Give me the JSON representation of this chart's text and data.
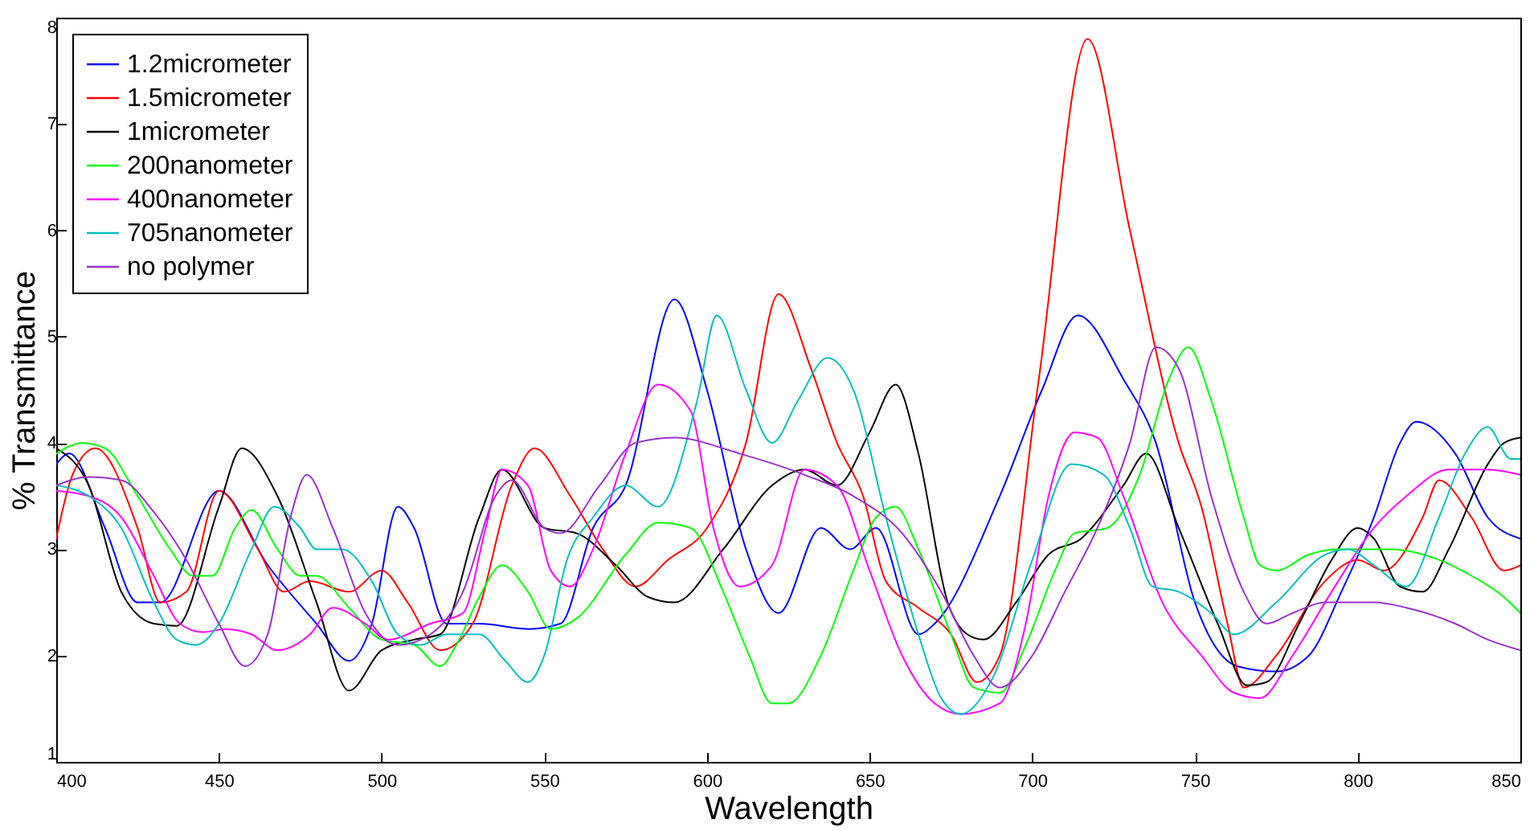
{
  "chart_data": {
    "type": "line",
    "xlabel": "Wavelength",
    "ylabel": "% Transmittance",
    "xlim": [
      400,
      850
    ],
    "ylim": [
      1,
      8
    ],
    "xticks": [
      400,
      450,
      500,
      550,
      600,
      650,
      700,
      750,
      800,
      850
    ],
    "yticks": [
      1,
      2,
      3,
      4,
      5,
      6,
      7,
      8
    ],
    "grid": false,
    "legend": "top left",
    "marker": "none",
    "line_style": "solid",
    "series": [
      {
        "name": "1.2micrometer",
        "color": "#0000ff",
        "x": [
          400,
          404,
          415,
          425,
          432,
          450,
          465,
          480,
          490,
          497,
          505,
          510,
          520,
          530,
          545,
          555,
          565,
          575,
          590,
          600,
          612,
          622,
          635,
          644,
          652,
          665,
          670,
          690,
          703,
          714,
          728,
          738,
          750,
          763,
          775,
          785,
          795,
          805,
          813,
          818,
          830,
          840,
          850
        ],
        "values": [
          3.8,
          3.9,
          3.2,
          2.5,
          2.5,
          3.55,
          2.85,
          2.3,
          1.95,
          2.3,
          3.4,
          3.2,
          2.3,
          2.3,
          2.25,
          2.3,
          3.2,
          3.6,
          5.35,
          4.5,
          3.0,
          2.4,
          3.2,
          3.0,
          3.2,
          2.2,
          2.3,
          3.5,
          4.5,
          5.2,
          4.6,
          4.0,
          2.5,
          1.9,
          1.85,
          2.0,
          2.6,
          3.3,
          4.0,
          4.2,
          3.9,
          3.3,
          3.1
        ]
      },
      {
        "name": "1.5micrometer",
        "color": "#ff0000",
        "x": [
          400,
          405,
          412,
          425,
          432,
          440,
          450,
          462,
          470,
          478,
          490,
          500,
          508,
          518,
          528,
          540,
          547,
          558,
          568,
          578,
          588,
          600,
          612,
          622,
          632,
          640,
          648,
          655,
          665,
          675,
          683,
          690,
          702,
          717,
          730,
          745,
          752,
          760,
          765,
          775,
          790,
          800,
          808,
          820,
          825,
          835,
          845,
          850
        ],
        "values": [
          3.1,
          3.7,
          3.95,
          3.2,
          2.5,
          2.6,
          3.55,
          3.0,
          2.6,
          2.7,
          2.6,
          2.8,
          2.5,
          2.05,
          2.3,
          3.6,
          3.95,
          3.5,
          3.0,
          2.65,
          2.9,
          3.2,
          4.0,
          5.4,
          4.7,
          4.0,
          3.5,
          2.7,
          2.45,
          2.2,
          1.75,
          2.0,
          4.6,
          7.8,
          6.0,
          4.0,
          3.4,
          2.3,
          1.7,
          2.0,
          2.7,
          2.9,
          2.8,
          3.3,
          3.65,
          3.3,
          2.8,
          2.85
        ]
      },
      {
        "name": "1micrometer",
        "color": "#000000",
        "x": [
          400,
          410,
          420,
          430,
          437,
          450,
          457,
          468,
          480,
          490,
          500,
          510,
          518,
          530,
          537,
          550,
          560,
          572,
          582,
          590,
          605,
          620,
          630,
          640,
          650,
          658,
          665,
          674,
          680,
          685,
          695,
          705,
          715,
          728,
          735,
          745,
          757,
          766,
          772,
          782,
          792,
          800,
          805,
          813,
          820,
          828,
          840,
          845,
          850
        ],
        "values": [
          3.95,
          3.6,
          2.6,
          2.3,
          2.28,
          3.4,
          3.95,
          3.5,
          2.5,
          1.67,
          2.05,
          2.15,
          2.2,
          3.3,
          3.75,
          3.2,
          3.15,
          2.85,
          2.55,
          2.5,
          3.0,
          3.6,
          3.75,
          3.6,
          4.1,
          4.55,
          3.9,
          2.5,
          2.2,
          2.15,
          2.5,
          2.95,
          3.1,
          3.6,
          3.9,
          3.2,
          2.3,
          1.72,
          1.75,
          2.3,
          2.9,
          3.2,
          3.1,
          2.65,
          2.6,
          3.0,
          3.8,
          4.0,
          4.05
        ]
      },
      {
        "name": "200nanometer",
        "color": "#00ff00",
        "x": [
          400,
          408,
          415,
          425,
          435,
          442,
          448,
          455,
          460,
          468,
          475,
          480,
          490,
          500,
          510,
          518,
          523,
          530,
          537,
          545,
          552,
          560,
          575,
          585,
          595,
          605,
          613,
          620,
          625,
          635,
          645,
          652,
          658,
          665,
          675,
          682,
          690,
          698,
          707,
          713,
          723,
          733,
          742,
          748,
          755,
          765,
          770,
          775,
          785,
          793,
          810,
          825,
          835,
          845,
          850
        ],
        "values": [
          3.9,
          4.0,
          3.95,
          3.5,
          3.0,
          2.75,
          2.75,
          3.2,
          3.37,
          3.0,
          2.75,
          2.75,
          2.45,
          2.15,
          2.1,
          1.9,
          2.1,
          2.55,
          2.85,
          2.6,
          2.25,
          2.35,
          2.95,
          3.25,
          3.2,
          2.6,
          2.0,
          1.55,
          1.55,
          2.0,
          2.8,
          3.3,
          3.4,
          3.0,
          2.2,
          1.7,
          1.65,
          2.1,
          2.8,
          3.15,
          3.2,
          3.7,
          4.6,
          4.9,
          4.4,
          3.3,
          2.85,
          2.8,
          2.95,
          3.0,
          3.0,
          2.9,
          2.75,
          2.55,
          2.4
        ]
      },
      {
        "name": "400nanometer",
        "color": "#ff00ff",
        "x": [
          400,
          410,
          420,
          430,
          438,
          445,
          452,
          460,
          468,
          478,
          485,
          495,
          502,
          515,
          525,
          532,
          537,
          545,
          552,
          558,
          565,
          575,
          585,
          595,
          602,
          610,
          620,
          630,
          640,
          650,
          660,
          670,
          678,
          690,
          698,
          705,
          713,
          720,
          728,
          740,
          752,
          762,
          770,
          780,
          792,
          805,
          815,
          828,
          840,
          850
        ],
        "values": [
          3.55,
          3.5,
          3.3,
          2.75,
          2.3,
          2.22,
          2.25,
          2.2,
          2.05,
          2.2,
          2.45,
          2.3,
          2.15,
          2.3,
          2.4,
          3.2,
          3.75,
          3.6,
          2.8,
          2.65,
          3.0,
          3.9,
          4.55,
          4.3,
          3.2,
          2.65,
          2.85,
          3.75,
          3.6,
          2.8,
          2.0,
          1.55,
          1.45,
          1.55,
          2.3,
          3.5,
          4.1,
          4.05,
          3.5,
          2.5,
          2.0,
          1.65,
          1.6,
          2.0,
          2.6,
          3.2,
          3.5,
          3.75,
          3.75,
          3.7
        ]
      },
      {
        "name": "705nanometer",
        "color": "#00bfbf",
        "x": [
          400,
          410,
          420,
          430,
          437,
          443,
          450,
          460,
          467,
          475,
          480,
          488,
          497,
          505,
          512,
          520,
          530,
          538,
          545,
          550,
          557,
          565,
          575,
          585,
          597,
          603,
          612,
          620,
          628,
          637,
          645,
          655,
          665,
          672,
          678,
          688,
          700,
          712,
          722,
          730,
          737,
          745,
          755,
          762,
          775,
          790,
          797,
          805,
          815,
          825,
          833,
          840,
          847,
          850
        ],
        "values": [
          3.6,
          3.5,
          3.2,
          2.5,
          2.15,
          2.1,
          2.3,
          3.0,
          3.4,
          3.2,
          3.0,
          3.0,
          2.7,
          2.2,
          2.1,
          2.2,
          2.2,
          1.95,
          1.75,
          2.0,
          2.9,
          3.3,
          3.6,
          3.4,
          4.4,
          5.2,
          4.5,
          4.0,
          4.4,
          4.8,
          4.5,
          3.3,
          2.2,
          1.6,
          1.45,
          1.8,
          2.9,
          3.8,
          3.7,
          3.2,
          2.65,
          2.6,
          2.4,
          2.2,
          2.5,
          2.95,
          3.0,
          2.85,
          2.65,
          3.3,
          3.9,
          4.15,
          3.85,
          3.85
        ]
      },
      {
        "name": "no polymer",
        "color": "#9932cc",
        "x": [
          400,
          410,
          420,
          430,
          440,
          450,
          458,
          465,
          472,
          477,
          485,
          495,
          505,
          515,
          525,
          535,
          540,
          550,
          555,
          567,
          578,
          590,
          610,
          630,
          645,
          660,
          672,
          682,
          690,
          700,
          710,
          720,
          730,
          738,
          745,
          755,
          765,
          772,
          780,
          790,
          805,
          815,
          830,
          840,
          850
        ],
        "values": [
          3.6,
          3.68,
          3.65,
          3.35,
          2.9,
          2.3,
          1.9,
          2.2,
          3.3,
          3.7,
          3.2,
          2.4,
          2.1,
          2.2,
          2.6,
          3.5,
          3.65,
          3.2,
          3.15,
          3.6,
          4.0,
          4.05,
          3.9,
          3.7,
          3.5,
          3.15,
          2.6,
          2.0,
          1.7,
          2.0,
          2.6,
          3.2,
          4.0,
          4.9,
          4.7,
          3.5,
          2.6,
          2.3,
          2.4,
          2.5,
          2.5,
          2.45,
          2.3,
          2.15,
          2.05
        ]
      }
    ]
  }
}
